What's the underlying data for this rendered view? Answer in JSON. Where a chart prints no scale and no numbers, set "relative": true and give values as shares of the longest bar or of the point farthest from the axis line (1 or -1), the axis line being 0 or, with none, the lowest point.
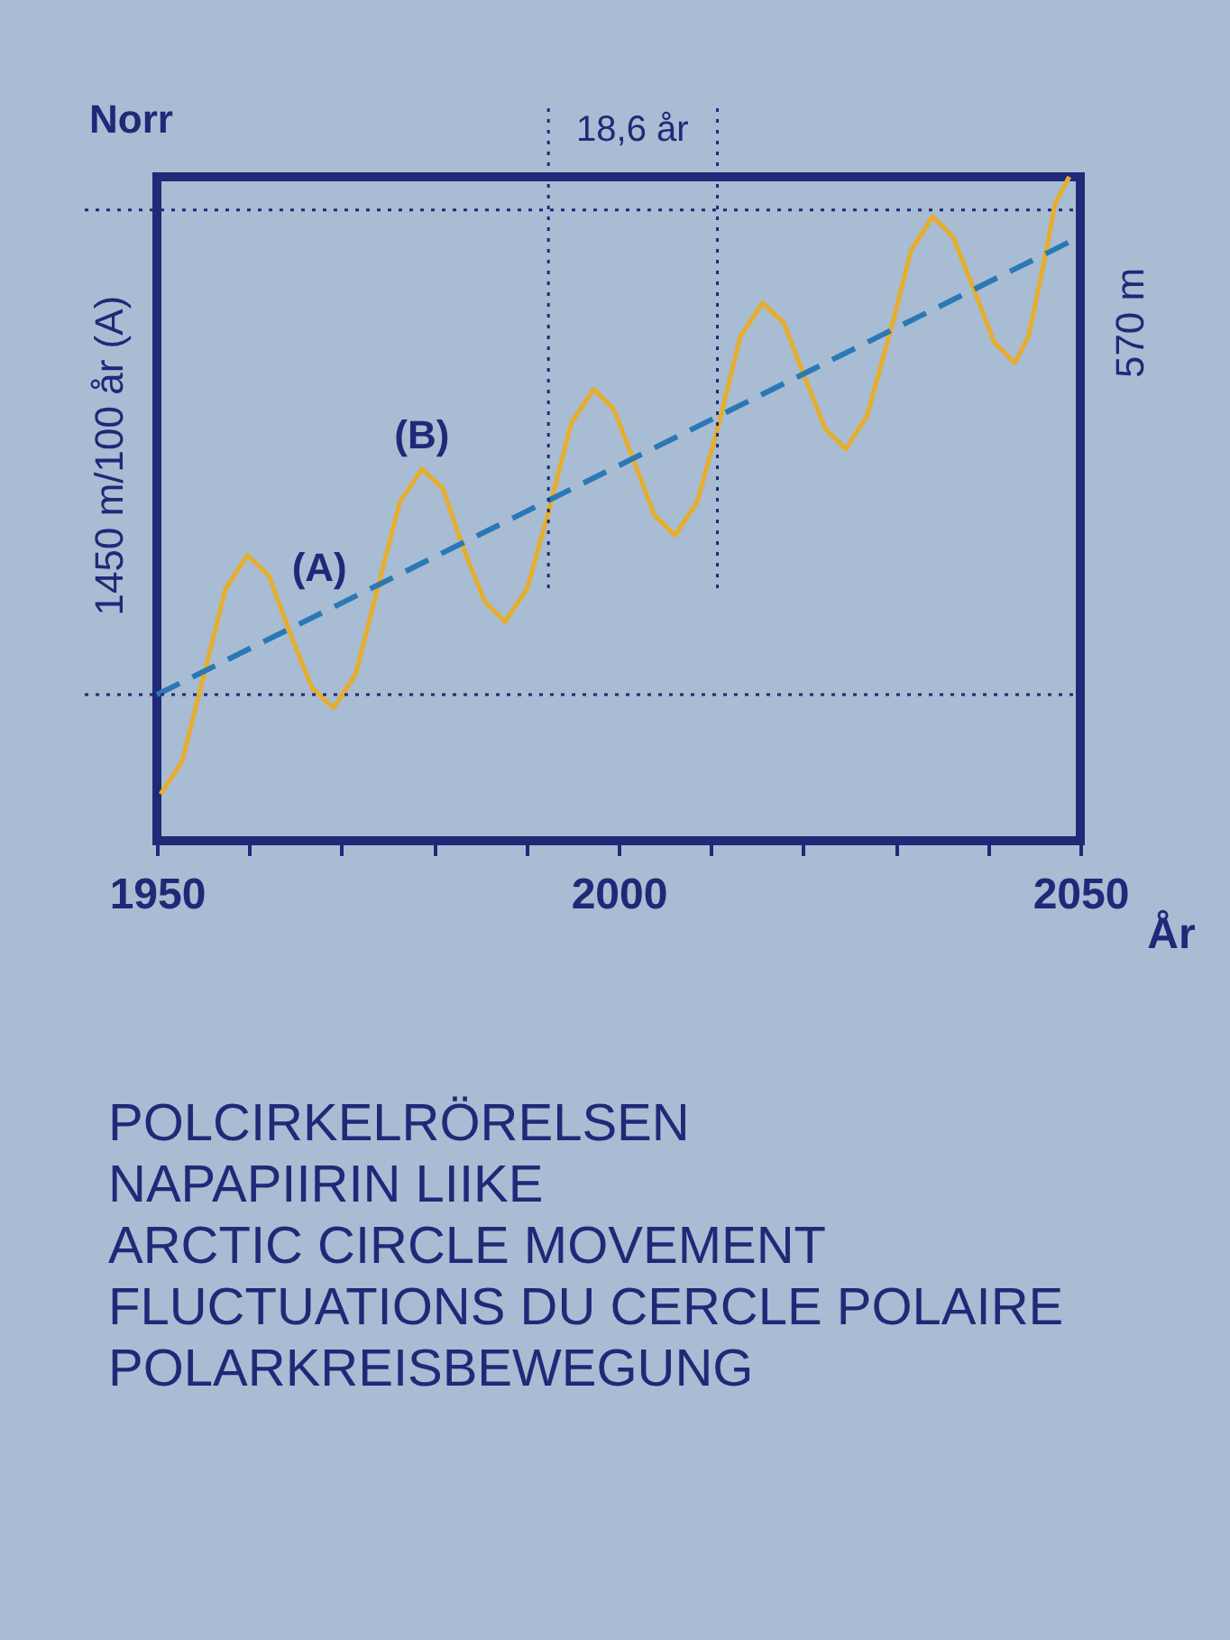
{
  "chart_data": {
    "type": "line",
    "title": "POLCIRKELRÖRELSEN",
    "xlabel": "År",
    "ylabel": "Norr",
    "relative": true,
    "xlim": [
      1950,
      2050
    ],
    "xticks": [
      1950,
      {
        "value": 1960,
        "label": null
      },
      {
        "value": 1970,
        "label": null
      },
      {
        "value": 1980,
        "label": null
      },
      {
        "value": 1990,
        "label": null
      },
      2000,
      {
        "value": 2010,
        "label": null
      },
      {
        "value": 2020,
        "label": null
      },
      {
        "value": 2030,
        "label": null
      },
      {
        "value": 2040,
        "label": null
      },
      2050
    ],
    "grid": false,
    "series": [
      {
        "color": "#e6ae2e",
        "x": [
          1950.4,
          1952.75,
          1955.1,
          1957.45,
          1959.8,
          1962.1,
          1964.5,
          1966.8,
          1969.1,
          1971.5,
          1973.9,
          1976.3,
          1978.7,
          1981.0,
          1983.2,
          1985.5,
          1987.7,
          1990.1,
          1992.5,
          1994.9,
          1997.3,
          1999.5,
          2001.7,
          2003.9,
          2006.1,
          2008.5,
          2010.9,
          2013.2,
          2015.6,
          2017.9,
          2020.1,
          2022.4,
          2024.6,
          2026.9,
          2029.3,
          2031.7,
          2034.0,
          2036.2,
          2038.5,
          2040.7,
          2042.9,
          2044.4,
          2045.9,
          2047.3,
          2048.8
        ],
        "values": [
          0.07,
          0.12,
          0.25,
          0.38,
          0.43,
          0.4,
          0.31,
          0.23,
          0.2,
          0.25,
          0.38,
          0.51,
          0.56,
          0.53,
          0.44,
          0.36,
          0.33,
          0.38,
          0.5,
          0.63,
          0.68,
          0.65,
          0.57,
          0.49,
          0.46,
          0.51,
          0.63,
          0.76,
          0.81,
          0.78,
          0.7,
          0.62,
          0.59,
          0.64,
          0.76,
          0.89,
          0.94,
          0.91,
          0.83,
          0.75,
          0.72,
          0.76,
          0.86,
          0.96,
          1.0
        ]
      },
      {
        "color": "#2a78b6",
        "line_style": "dashed",
        "x": [
          1950,
          2050
        ],
        "values": [
          0.22,
          0.91
        ]
      }
    ],
    "ref_lines": [
      {
        "axis": "y",
        "value": 0.22,
        "line_style": "dotted"
      },
      {
        "axis": "y",
        "value": 0.95,
        "line_style": "dotted"
      },
      {
        "axis": "x",
        "value": 1992.4,
        "line_style": "dotted"
      },
      {
        "axis": "x",
        "value": 2010.7,
        "line_style": "dotted"
      }
    ],
    "annotations": [
      "1450 m/100 år (A)",
      "570 m",
      "18,6 år",
      "(A)",
      "(B)",
      "NAPAPIIRIN LIIKE",
      "ARCTIC CIRCLE MOVEMENT",
      "FLUCTUATIONS DU CERCLE POLAIRE",
      "POLARKREISBEWEGUNG"
    ]
  }
}
